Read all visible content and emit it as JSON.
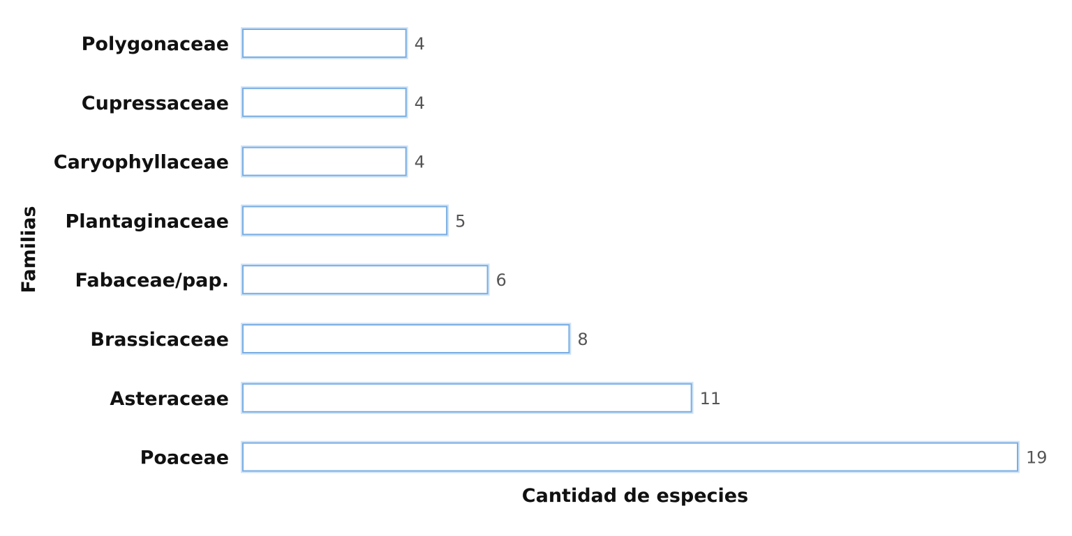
{
  "chart_data": {
    "type": "bar",
    "orientation": "horizontal",
    "categories": [
      "Polygonaceae",
      "Cupressaceae",
      "Caryophyllaceae",
      "Plantaginaceae",
      "Fabaceae/pap.",
      "Brassicaceae",
      "Asteraceae",
      "Poaceae"
    ],
    "values": [
      4,
      4,
      4,
      5,
      6,
      8,
      11,
      19
    ],
    "value_labels": [
      "4",
      "4",
      "4",
      "5",
      "6",
      "8",
      "11",
      "19"
    ],
    "xlabel": "Cantidad de especies",
    "ylabel": "Familias",
    "xlim": [
      0,
      19
    ],
    "grid": false,
    "legend": "none",
    "colors": {
      "bar_fill": "#ffffff",
      "bar_stroke": "#7aaee3",
      "bar_glow": "#cfe3f7",
      "label_text": "#111111",
      "value_text": "#555555"
    }
  }
}
